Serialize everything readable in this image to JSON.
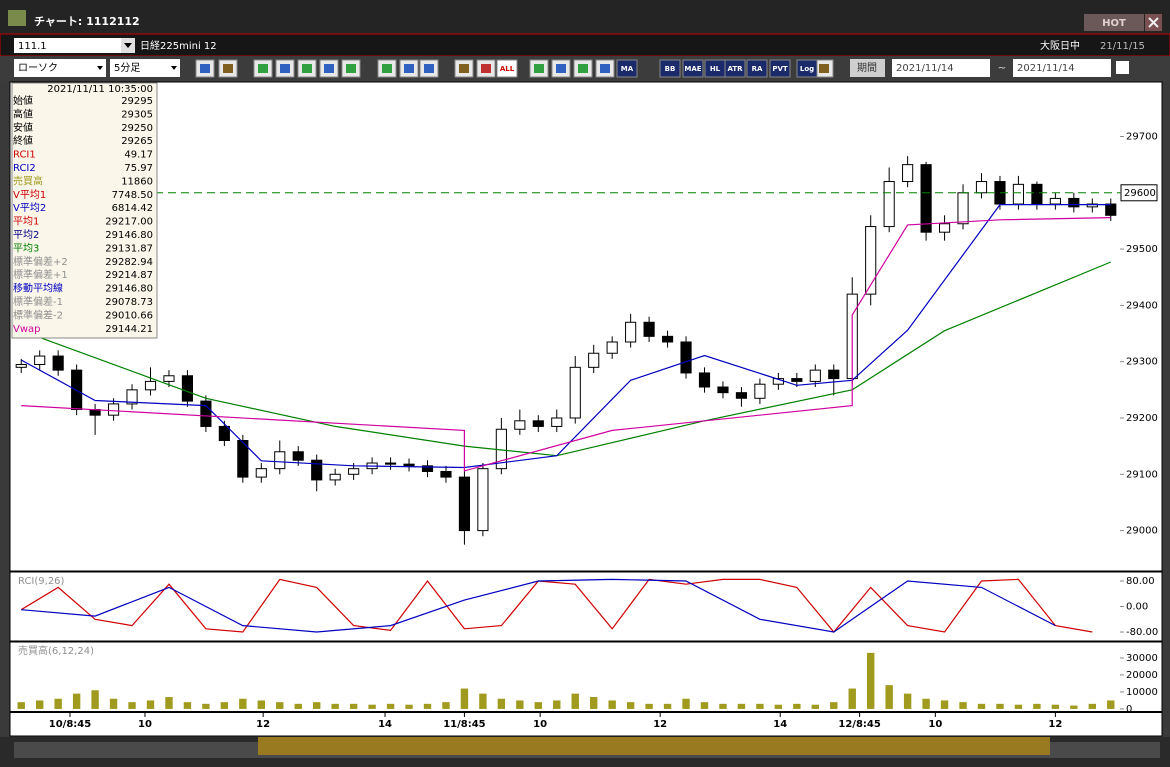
{
  "window": {
    "title": "チャート: 1112112",
    "hot": "HOT",
    "code": "111.1",
    "instrument": "日経225mini 12",
    "market": "大阪日中",
    "date": "21/11/15"
  },
  "toolbar": {
    "chart_style": "ローソク",
    "interval": "5分足",
    "buttons": [
      "ALL",
      "MA",
      "BB",
      "MAE",
      "HL",
      "ATR",
      "RA",
      "PVT",
      "Log"
    ],
    "period_label": "期間",
    "date_from": "2021/11/14",
    "tilde": "~",
    "date_to": "2021/11/14"
  },
  "info_panel": {
    "datetime": "2021/11/11 10:35:00",
    "rows": [
      {
        "label": "始値",
        "value": "29295",
        "color": "#000000"
      },
      {
        "label": "高値",
        "value": "29305",
        "color": "#000000"
      },
      {
        "label": "安値",
        "value": "29250",
        "color": "#000000"
      },
      {
        "label": "終値",
        "value": "29265",
        "color": "#000000"
      },
      {
        "label": "RCI1",
        "value": "49.17",
        "color": "#d00000"
      },
      {
        "label": "RCI2",
        "value": "75.97",
        "color": "#0000c0"
      },
      {
        "label": "売買高",
        "value": "11860",
        "color": "#a09a1e"
      },
      {
        "label": "V平均1",
        "value": "7748.50",
        "color": "#d00000"
      },
      {
        "label": "V平均2",
        "value": "6814.42",
        "color": "#0000c0"
      },
      {
        "label": "平均1",
        "value": "29217.00",
        "color": "#d00000"
      },
      {
        "label": "平均2",
        "value": "29146.80",
        "color": "#000080"
      },
      {
        "label": "平均3",
        "value": "29131.87",
        "color": "#008000"
      },
      {
        "label": "標準偏差+2",
        "value": "29282.94",
        "color": "#909090"
      },
      {
        "label": "標準偏差+1",
        "value": "29214.87",
        "color": "#909090"
      },
      {
        "label": "移動平均線",
        "value": "29146.80",
        "color": "#0000c0"
      },
      {
        "label": "標準偏差-1",
        "value": "29078.73",
        "color": "#909090"
      },
      {
        "label": "標準偏差-2",
        "value": "29010.66",
        "color": "#909090"
      },
      {
        "label": "Vwap",
        "value": "29144.21",
        "color": "#d000a0"
      }
    ]
  },
  "chart_data": [
    {
      "type": "candlestick",
      "xlim": [
        -0.5,
        59.5
      ],
      "ylim": [
        28930,
        29795
      ],
      "yticks": [
        29000,
        29100,
        29200,
        29300,
        29400,
        29500,
        29600,
        29700
      ],
      "current_price": 29600,
      "current_color": "#008000",
      "up_color": "#ffffff",
      "down_color": "#000000",
      "open": [
        29290,
        29295,
        29310,
        29285,
        29215,
        29205,
        29225,
        29250,
        29265,
        29275,
        29230,
        29185,
        29160,
        29095,
        29110,
        29140,
        29125,
        29090,
        29100,
        29110,
        29120,
        29118,
        29115,
        29105,
        29095,
        29000,
        29110,
        29180,
        29195,
        29185,
        29200,
        29290,
        29315,
        29335,
        29370,
        29345,
        29335,
        29280,
        29255,
        29245,
        29235,
        29260,
        29270,
        29265,
        29285,
        29270,
        29420,
        29540,
        29620,
        29650,
        29530,
        29545,
        29600,
        29620,
        29580,
        29615,
        29580,
        29590,
        29575,
        29580
      ],
      "high": [
        29305,
        29320,
        29320,
        29295,
        29225,
        29235,
        29260,
        29290,
        29285,
        29285,
        29240,
        29195,
        29170,
        29120,
        29160,
        29150,
        29135,
        29110,
        29120,
        29130,
        29130,
        29128,
        29125,
        29115,
        29105,
        29120,
        29200,
        29215,
        29205,
        29215,
        29310,
        29330,
        29345,
        29385,
        29380,
        29355,
        29345,
        29290,
        29265,
        29255,
        29270,
        29280,
        29280,
        29295,
        29295,
        29450,
        29560,
        29645,
        29665,
        29655,
        29560,
        29615,
        29635,
        29630,
        29630,
        29620,
        29600,
        29600,
        29590,
        29590
      ],
      "low": [
        29280,
        29285,
        29275,
        29205,
        29170,
        29195,
        29215,
        29240,
        29255,
        29220,
        29175,
        29150,
        29085,
        29085,
        29100,
        29115,
        29070,
        29080,
        29090,
        29100,
        29108,
        29105,
        29095,
        29085,
        28975,
        28990,
        29100,
        29170,
        29175,
        29175,
        29190,
        29280,
        29305,
        29325,
        29335,
        29325,
        29270,
        29245,
        29235,
        29220,
        29225,
        29250,
        29255,
        29255,
        29240,
        29260,
        29400,
        29530,
        29610,
        29515,
        29515,
        29535,
        29590,
        29570,
        29570,
        29570,
        29570,
        29565,
        29565,
        29550
      ],
      "close": [
        29295,
        29310,
        29285,
        29215,
        29205,
        29225,
        29250,
        29265,
        29275,
        29230,
        29185,
        29160,
        29095,
        29110,
        29140,
        29125,
        29090,
        29100,
        29110,
        29120,
        29118,
        29115,
        29105,
        29095,
        29000,
        29110,
        29180,
        29195,
        29185,
        29200,
        29290,
        29315,
        29335,
        29370,
        29345,
        29335,
        29280,
        29255,
        29245,
        29235,
        29260,
        29270,
        29265,
        29285,
        29270,
        29420,
        29540,
        29620,
        29650,
        29530,
        29545,
        29600,
        29620,
        29580,
        29615,
        29580,
        29590,
        29575,
        29580,
        29560
      ],
      "series": [
        {
          "name": "平均3",
          "color": "#008000",
          "x": [
            0,
            10,
            17,
            24,
            29,
            37,
            45,
            50,
            59
          ],
          "values": [
            29355,
            29235,
            29185,
            29150,
            29133,
            29195,
            29250,
            29355,
            29477
          ]
        },
        {
          "name": "平均2",
          "color": "#0000c0",
          "x": [
            0,
            4,
            10,
            13,
            18,
            24,
            29,
            33,
            37,
            42,
            45,
            48,
            53,
            59
          ],
          "values": [
            29303,
            29231,
            29222,
            29124,
            29115,
            29112,
            29133,
            29267,
            29311,
            29258,
            29267,
            29356,
            29579,
            29579
          ]
        },
        {
          "name": "Vwap",
          "color": "#d000a0",
          "x": [
            0,
            24,
            24,
            32,
            45,
            45,
            48,
            53,
            59
          ],
          "values": [
            29222,
            29178,
            29106,
            29178,
            29222,
            29383,
            29543,
            29552,
            29556
          ]
        }
      ]
    },
    {
      "type": "line",
      "title": "RCI(9,26)",
      "xlim": [
        -0.5,
        59.5
      ],
      "ylim": [
        -105,
        105
      ],
      "yticks": [
        {
          "value": 80,
          "label": "80.00"
        },
        {
          "value": 0,
          "label": "0.00"
        },
        {
          "value": -80,
          "label": "-80.00"
        }
      ],
      "series": [
        {
          "name": "RCI1",
          "color": "#d00000",
          "x": [
            0,
            2,
            4,
            6,
            8,
            10,
            12,
            14,
            16,
            18,
            20,
            22,
            24,
            26,
            28,
            30,
            32,
            34,
            36,
            38,
            40,
            42,
            44,
            46,
            48,
            50,
            52,
            54,
            56,
            58
          ],
          "values": [
            -10,
            60,
            -40,
            -60,
            70,
            -70,
            -80,
            85,
            60,
            -60,
            -75,
            80,
            -70,
            -60,
            80,
            70,
            -70,
            85,
            70,
            85,
            85,
            60,
            -80,
            60,
            -60,
            -80,
            80,
            85,
            -60,
            -80
          ]
        },
        {
          "name": "RCI2",
          "color": "#0000c0",
          "x": [
            0,
            4,
            8,
            12,
            16,
            20,
            24,
            28,
            32,
            36,
            40,
            44,
            48,
            52,
            56
          ],
          "values": [
            -10,
            -30,
            60,
            -60,
            -80,
            -60,
            20,
            80,
            85,
            80,
            -40,
            -80,
            80,
            60,
            -60
          ]
        }
      ]
    },
    {
      "type": "bar",
      "title": "売買高(6,12,24)",
      "xlim": [
        -0.5,
        59.5
      ],
      "ylim": [
        -1800,
        38800
      ],
      "yticks": [
        0,
        10000,
        20000,
        30000
      ],
      "color": "#a09a1e",
      "values": [
        4000,
        5000,
        6000,
        9000,
        11000,
        6000,
        4000,
        5000,
        7000,
        4000,
        3000,
        4000,
        6000,
        5000,
        4000,
        3000,
        4000,
        3000,
        3000,
        2500,
        3000,
        2500,
        3000,
        4000,
        12000,
        9000,
        6000,
        5000,
        4000,
        5000,
        9000,
        7000,
        5000,
        4000,
        3000,
        3000,
        6000,
        4000,
        3000,
        3000,
        3000,
        2500,
        3000,
        2500,
        4000,
        12000,
        33000,
        14000,
        9000,
        6000,
        5000,
        4000,
        3000,
        3000,
        2500,
        3000,
        2500,
        2000,
        3000,
        5000
      ],
      "xticks": [
        {
          "value": 2.64,
          "label": "10/8:45"
        },
        {
          "value": 6.7,
          "label": "10"
        },
        {
          "value": 13.1,
          "label": "12"
        },
        {
          "value": 19.7,
          "label": "14"
        },
        {
          "value": 24.0,
          "label": "11/8:45"
        },
        {
          "value": 28.1,
          "label": "10"
        },
        {
          "value": 34.6,
          "label": "12"
        },
        {
          "value": 41.1,
          "label": "14"
        },
        {
          "value": 45.4,
          "label": "12/8:45"
        },
        {
          "value": 49.5,
          "label": "10"
        },
        {
          "value": 56.0,
          "label": "12"
        }
      ]
    }
  ]
}
